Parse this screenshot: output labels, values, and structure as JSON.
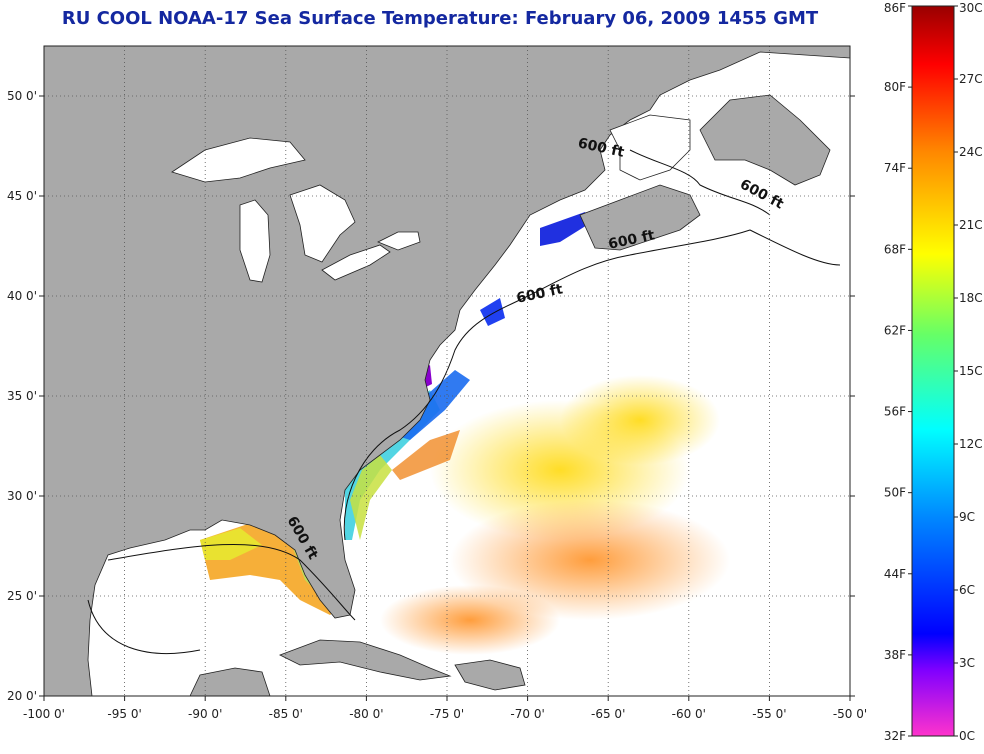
{
  "title": "RU COOL  NOAA-17  Sea Surface Temperature:  February 06, 2009 1455 GMT",
  "map": {
    "lon_range": [
      -100,
      -50
    ],
    "lat_range": [
      20,
      52.5
    ],
    "lon_ticks": [
      {
        "value": -100,
        "label": "-100 0'"
      },
      {
        "value": -95,
        "label": "-95 0'"
      },
      {
        "value": -90,
        "label": "-90 0'"
      },
      {
        "value": -85,
        "label": "-85 0'"
      },
      {
        "value": -80,
        "label": "-80 0'"
      },
      {
        "value": -75,
        "label": "-75 0'"
      },
      {
        "value": -70,
        "label": "-70 0'"
      },
      {
        "value": -65,
        "label": "-65 0'"
      },
      {
        "value": -60,
        "label": "-60 0'"
      },
      {
        "value": -55,
        "label": "-55 0'"
      },
      {
        "value": -50,
        "label": "-50 0'"
      }
    ],
    "lat_ticks": [
      {
        "value": 20,
        "label": "20 0'"
      },
      {
        "value": 25,
        "label": "25 0'"
      },
      {
        "value": 30,
        "label": "30 0'"
      },
      {
        "value": 35,
        "label": "35 0'"
      },
      {
        "value": 40,
        "label": "40 0'"
      },
      {
        "value": 45,
        "label": "45 0'"
      },
      {
        "value": 50,
        "label": "50 0'"
      }
    ],
    "grid": true,
    "land_color": "#a9a9a9",
    "lake_color": "#ffffff",
    "water_color": "#ffffff",
    "contour_labels": [
      {
        "text": "600 ft",
        "lon": -65.5,
        "lat": 47.2,
        "angle": 12
      },
      {
        "text": "600 ft",
        "lon": -55.6,
        "lat": 44.9,
        "angle": 28
      },
      {
        "text": "600 ft",
        "lon": -63.5,
        "lat": 42.6,
        "angle": -12
      },
      {
        "text": "600 ft",
        "lon": -69.2,
        "lat": 39.9,
        "angle": -12
      },
      {
        "text": "600 ft",
        "lon": -84.2,
        "lat": 27.8,
        "angle": 60
      }
    ]
  },
  "colorbar": {
    "colormap": "jet-extended",
    "fahrenheit_labels": [
      "86F",
      "80F",
      "74F",
      "68F",
      "62F",
      "56F",
      "50F",
      "44F",
      "38F",
      "32F"
    ],
    "celsius_labels": [
      "30C",
      "27C",
      "24C",
      "21C",
      "18C",
      "15C",
      "12C",
      "9C",
      "6C",
      "3C",
      "0C"
    ]
  }
}
